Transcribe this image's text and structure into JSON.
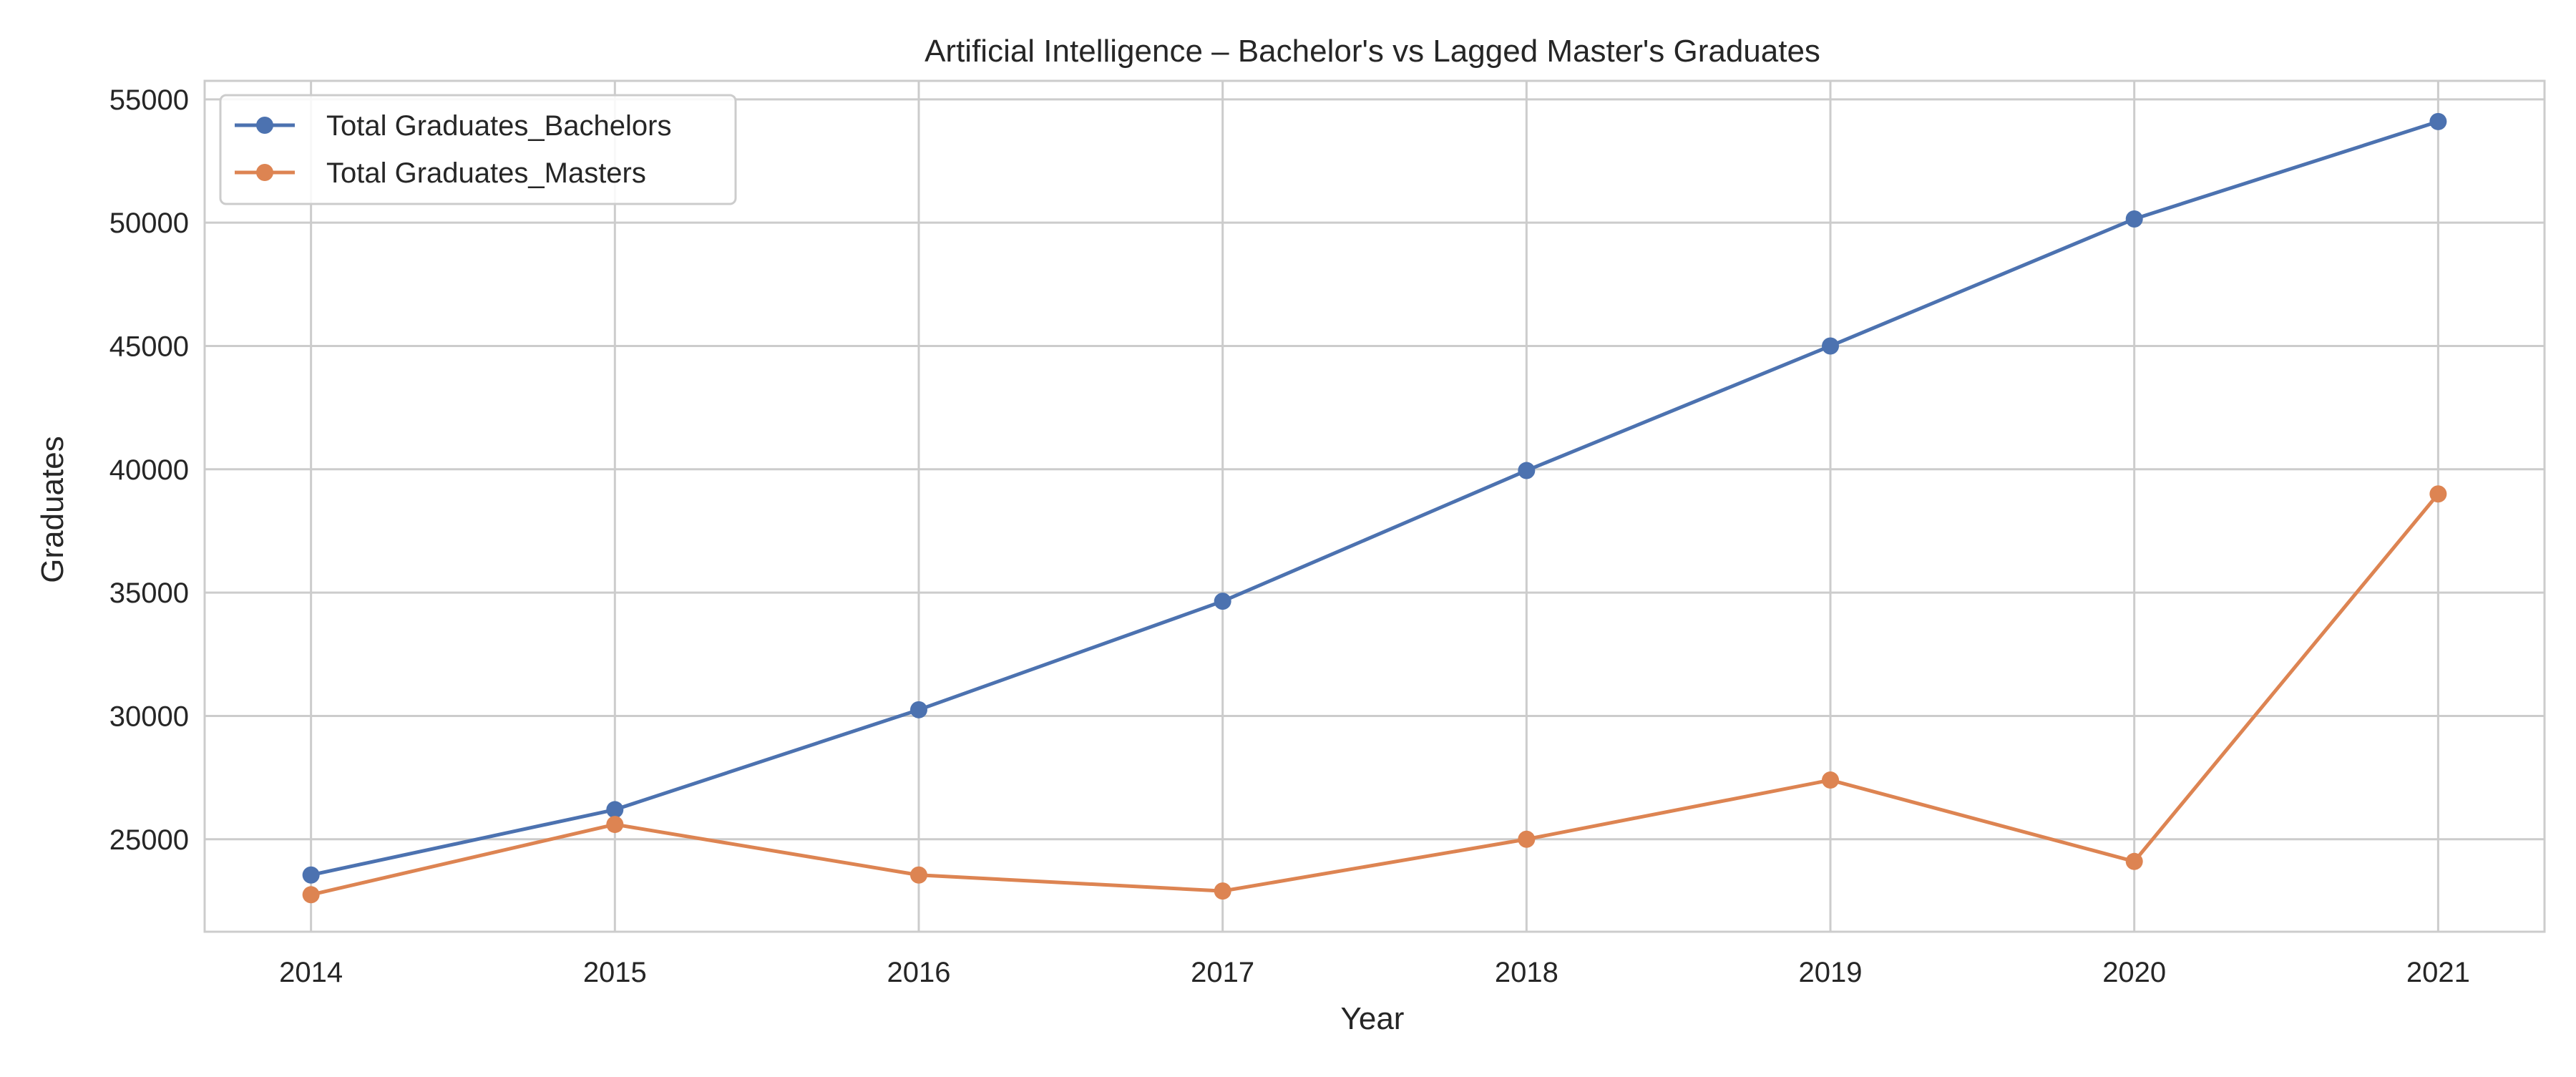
{
  "chart_data": {
    "type": "line",
    "title": "Artificial Intelligence – Bachelor's vs Lagged Master's Graduates",
    "xlabel": "Year",
    "ylabel": "Graduates",
    "x": [
      2014,
      2015,
      2016,
      2017,
      2018,
      2019,
      2020,
      2021
    ],
    "x_ticks": [
      "2014",
      "2015",
      "2016",
      "2017",
      "2018",
      "2019",
      "2020",
      "2021"
    ],
    "y_ticks": [
      "25000",
      "30000",
      "35000",
      "40000",
      "45000",
      "50000",
      "55000"
    ],
    "y_tick_values": [
      25000,
      30000,
      35000,
      40000,
      45000,
      50000,
      55000
    ],
    "xlim": [
      2013.65,
      2021.35
    ],
    "ylim": [
      21250,
      55750
    ],
    "grid": true,
    "legend_position": "upper-left",
    "series": [
      {
        "name": "Total Graduates_Bachelors",
        "color": "#4c72b0",
        "marker": "circle",
        "values": [
          23550,
          26200,
          30250,
          34650,
          39950,
          45000,
          50150,
          54100
        ]
      },
      {
        "name": "Total Graduates_Masters",
        "color": "#dd8452",
        "marker": "circle",
        "values": [
          22750,
          25600,
          23550,
          22900,
          25000,
          27400,
          24100,
          39000
        ]
      }
    ]
  }
}
